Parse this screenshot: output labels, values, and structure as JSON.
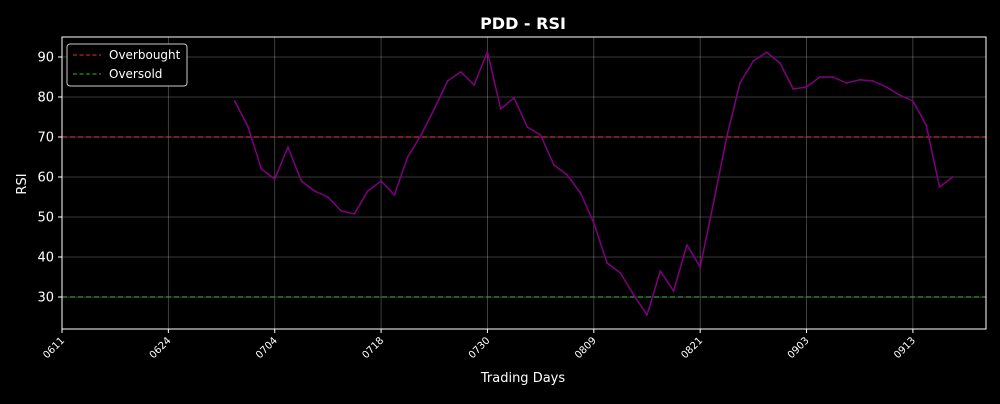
{
  "chart_data": {
    "type": "line",
    "title": "PDD - RSI",
    "xlabel": "Trading Days",
    "ylabel": "RSI",
    "x_tick_labels": [
      "0611",
      "0624",
      "0704",
      "0718",
      "0730",
      "0809",
      "0821",
      "0903",
      "0913"
    ],
    "x_tick_index": [
      0,
      8,
      16,
      24,
      32,
      40,
      48,
      56,
      64
    ],
    "x_range": [
      0,
      69.5
    ],
    "y_ticks": [
      30,
      40,
      50,
      60,
      70,
      80,
      90
    ],
    "ylim": [
      22,
      95
    ],
    "grid": true,
    "legend": {
      "position": "top-left",
      "entries": [
        "Overbought",
        "Oversold"
      ]
    },
    "thresholds": [
      {
        "name": "Overbought",
        "value": 70,
        "color": "#d62728",
        "style": "dashed"
      },
      {
        "name": "Oversold",
        "value": 30,
        "color": "#2ca02c",
        "style": "dashed"
      }
    ],
    "series": [
      {
        "color": "#800080",
        "start_index": 13,
        "values": [
          79,
          72.5,
          62,
          59.5,
          67.5,
          59,
          56.5,
          55,
          51.5,
          50.8,
          56.5,
          59,
          55.5,
          65,
          70.5,
          77,
          84,
          86.3,
          83,
          91.3,
          77,
          79.8,
          72.5,
          70.5,
          63,
          60.5,
          56,
          48.5,
          38.5,
          36,
          30.5,
          25.5,
          36.5,
          31.5,
          43,
          37.5,
          53.5,
          70,
          83.5,
          89,
          91.2,
          88.5,
          82,
          82.5,
          85,
          85,
          83.5,
          84.3,
          84,
          82.5,
          80.5,
          79,
          73,
          57.5,
          60
        ]
      }
    ]
  }
}
